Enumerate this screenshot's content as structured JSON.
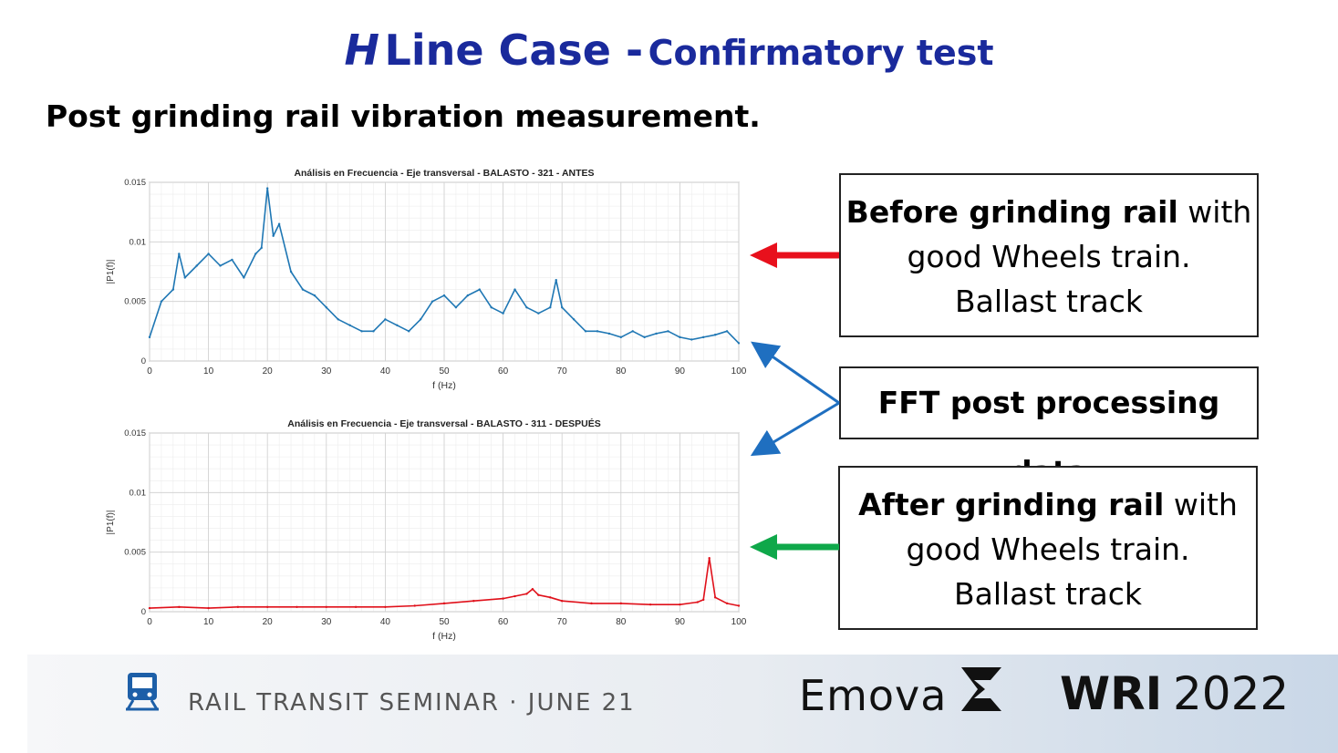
{
  "slide": {
    "title_h": "H",
    "title_main": "Line Case -",
    "title_sub": "Confirmatory test",
    "subtitle": "Post grinding rail vibration measurement."
  },
  "boxes": {
    "before": {
      "bold": "Before grinding rail",
      "rest1": " with",
      "line2": "good Wheels train.",
      "line3": "Ballast track"
    },
    "fft": {
      "text": "FFT post processing data"
    },
    "after": {
      "bold": "After grinding rail",
      "rest1": " with",
      "line2": "good Wheels train.",
      "line3": "Ballast track"
    }
  },
  "colors": {
    "title": "#1a2a9c",
    "before_series": "#1f77b4",
    "after_series": "#e0101a",
    "arrow_red": "#e8101c",
    "arrow_blue": "#1f6fc0",
    "arrow_green": "#0fa84a"
  },
  "footer": {
    "seminar": "RAIL TRANSIT SEMINAR · JUNE 21",
    "brand": "Emova",
    "event_bold": "WRI",
    "event_year": "2022",
    "icons": [
      "train-icon",
      "emova-logo-icon"
    ]
  },
  "chart_data": [
    {
      "type": "line",
      "title": "Análisis en Frecuencia - Eje transversal - BALASTO - 321 - ANTES",
      "xlabel": "f (Hz)",
      "ylabel": "|P1(f)|",
      "xlim": [
        0,
        100
      ],
      "ylim": [
        0,
        0.015
      ],
      "xticks": [
        "0",
        "10",
        "20",
        "30",
        "40",
        "50",
        "60",
        "70",
        "80",
        "90",
        "100"
      ],
      "yticks": [
        "0",
        "0.005",
        "0.01",
        "0.015"
      ],
      "grid": true,
      "series": [
        {
          "name": "ANTES",
          "color": "#1f77b4",
          "x": [
            0,
            2,
            4,
            5,
            6,
            8,
            10,
            12,
            14,
            16,
            18,
            19,
            20,
            21,
            22,
            24,
            26,
            28,
            30,
            32,
            34,
            36,
            38,
            40,
            42,
            44,
            46,
            48,
            50,
            52,
            54,
            56,
            58,
            60,
            62,
            64,
            66,
            68,
            69,
            70,
            72,
            74,
            76,
            78,
            80,
            82,
            84,
            86,
            88,
            90,
            92,
            94,
            96,
            98,
            100
          ],
          "values": [
            0.002,
            0.005,
            0.006,
            0.009,
            0.007,
            0.008,
            0.009,
            0.008,
            0.0085,
            0.007,
            0.009,
            0.0095,
            0.0145,
            0.0105,
            0.0115,
            0.0075,
            0.006,
            0.0055,
            0.0045,
            0.0035,
            0.003,
            0.0025,
            0.0025,
            0.0035,
            0.003,
            0.0025,
            0.0035,
            0.005,
            0.0055,
            0.0045,
            0.0055,
            0.006,
            0.0045,
            0.004,
            0.006,
            0.0045,
            0.004,
            0.0045,
            0.0068,
            0.0045,
            0.0035,
            0.0025,
            0.0025,
            0.0023,
            0.002,
            0.0025,
            0.002,
            0.0023,
            0.0025,
            0.002,
            0.0018,
            0.002,
            0.0022,
            0.0025,
            0.0015
          ]
        }
      ]
    },
    {
      "type": "line",
      "title": "Análisis en Frecuencia - Eje transversal - BALASTO - 311 - DESPUÉS",
      "xlabel": "f (Hz)",
      "ylabel": "|P1(f)|",
      "xlim": [
        0,
        100
      ],
      "ylim": [
        0,
        0.015
      ],
      "xticks": [
        "0",
        "10",
        "20",
        "30",
        "40",
        "50",
        "60",
        "70",
        "80",
        "90",
        "100"
      ],
      "yticks": [
        "0",
        "0.005",
        "0.01",
        "0.015"
      ],
      "grid": true,
      "series": [
        {
          "name": "DESPUÉS",
          "color": "#e0101a",
          "x": [
            0,
            5,
            10,
            15,
            20,
            25,
            30,
            35,
            40,
            45,
            50,
            55,
            60,
            62,
            64,
            65,
            66,
            68,
            70,
            75,
            80,
            85,
            90,
            93,
            94,
            95,
            96,
            98,
            100
          ],
          "values": [
            0.0003,
            0.0004,
            0.0003,
            0.0004,
            0.0004,
            0.0004,
            0.0004,
            0.0004,
            0.0004,
            0.0005,
            0.0007,
            0.0009,
            0.0011,
            0.0013,
            0.0015,
            0.0019,
            0.0014,
            0.0012,
            0.0009,
            0.0007,
            0.0007,
            0.0006,
            0.0006,
            0.0008,
            0.001,
            0.0045,
            0.0012,
            0.0007,
            0.0005
          ]
        }
      ]
    }
  ]
}
